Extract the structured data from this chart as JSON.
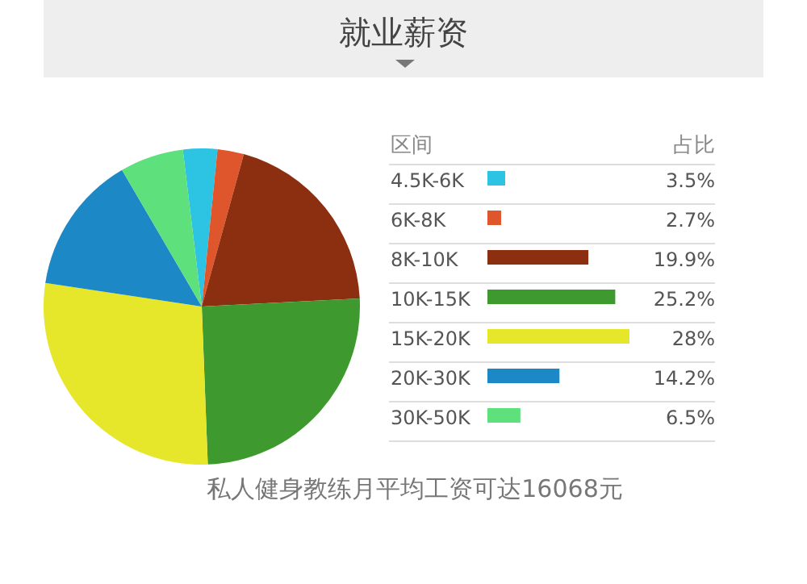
{
  "chart_data": {
    "type": "pie",
    "title": "就业薪资",
    "legend_title": "区间",
    "categories": [
      "4.5K-6K",
      "6K-8K",
      "8K-10K",
      "10K-15K",
      "15K-20K",
      "20K-30K",
      "30K-50K"
    ],
    "values": [
      3.5,
      2.7,
      19.9,
      25.2,
      28,
      14.2,
      6.5
    ],
    "colors": [
      "#2cc4e2",
      "#e0562c",
      "#8c2e10",
      "#3e9a2e",
      "#e6e62a",
      "#1c88c6",
      "#5ee07c"
    ],
    "value_labels": [
      "3.5%",
      "2.7%",
      "19.9%",
      "25.2%",
      "28%",
      "14.2%",
      "6.5%"
    ],
    "legend": "right",
    "annotations": [
      "占比",
      "私人健身教练月平均工资可达16068元"
    ]
  }
}
